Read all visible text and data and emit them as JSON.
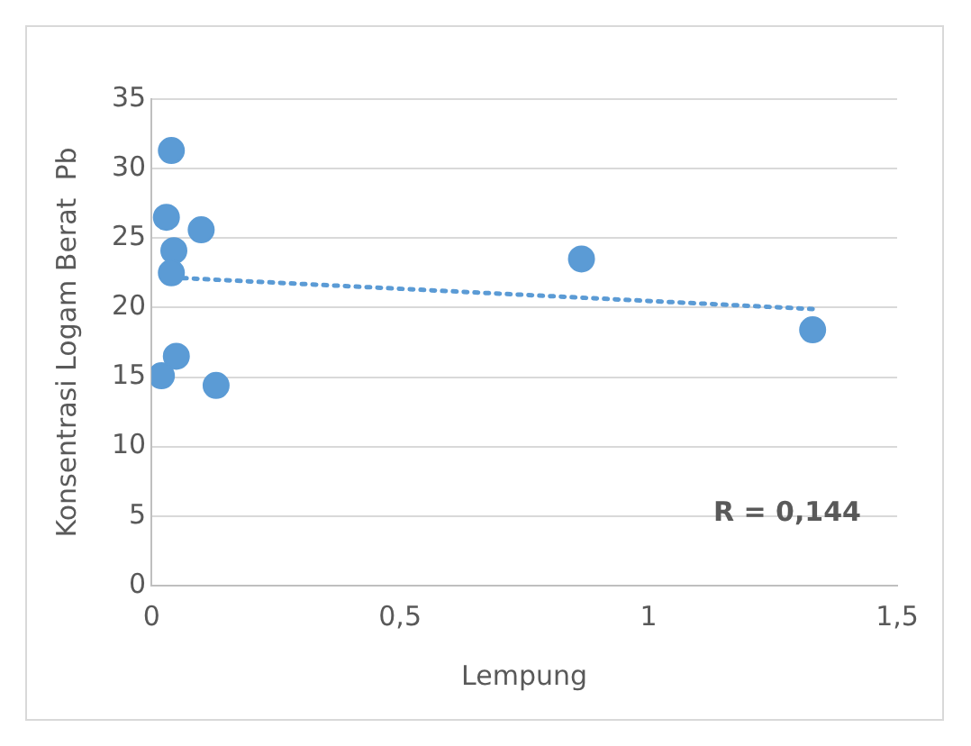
{
  "chart_data": {
    "type": "scatter",
    "xlabel": "Lempung",
    "ylabel": "Konsentrasi Logam Berat  Pb",
    "xlim": [
      0,
      1.5
    ],
    "xticks": [
      0,
      {
        "value": 0.5,
        "label": "0,5"
      },
      1,
      {
        "value": 1.5,
        "label": "1,5"
      }
    ],
    "ylim": [
      0,
      35
    ],
    "yticks": [
      0,
      5,
      10,
      15,
      20,
      25,
      30,
      35
    ],
    "grid": "y",
    "legend": false,
    "marker": "circle",
    "series": [
      {
        "color": "#5b9bd5",
        "x": [
          0.04,
          0.03,
          0.1,
          0.045,
          0.04,
          0.05,
          0.02,
          0.13,
          0.865,
          1.33
        ],
        "values": [
          31.3,
          26.5,
          25.6,
          24.1,
          22.5,
          16.5,
          15.1,
          14.4,
          23.5,
          18.4
        ]
      },
      {
        "type": "line",
        "color": "#5b9bd5",
        "line_style": "dotted",
        "marker": "none",
        "x": [
          0.02,
          1.33
        ],
        "values": [
          22.2,
          19.9
        ]
      }
    ],
    "annotations": [
      "R = 0,144"
    ]
  }
}
